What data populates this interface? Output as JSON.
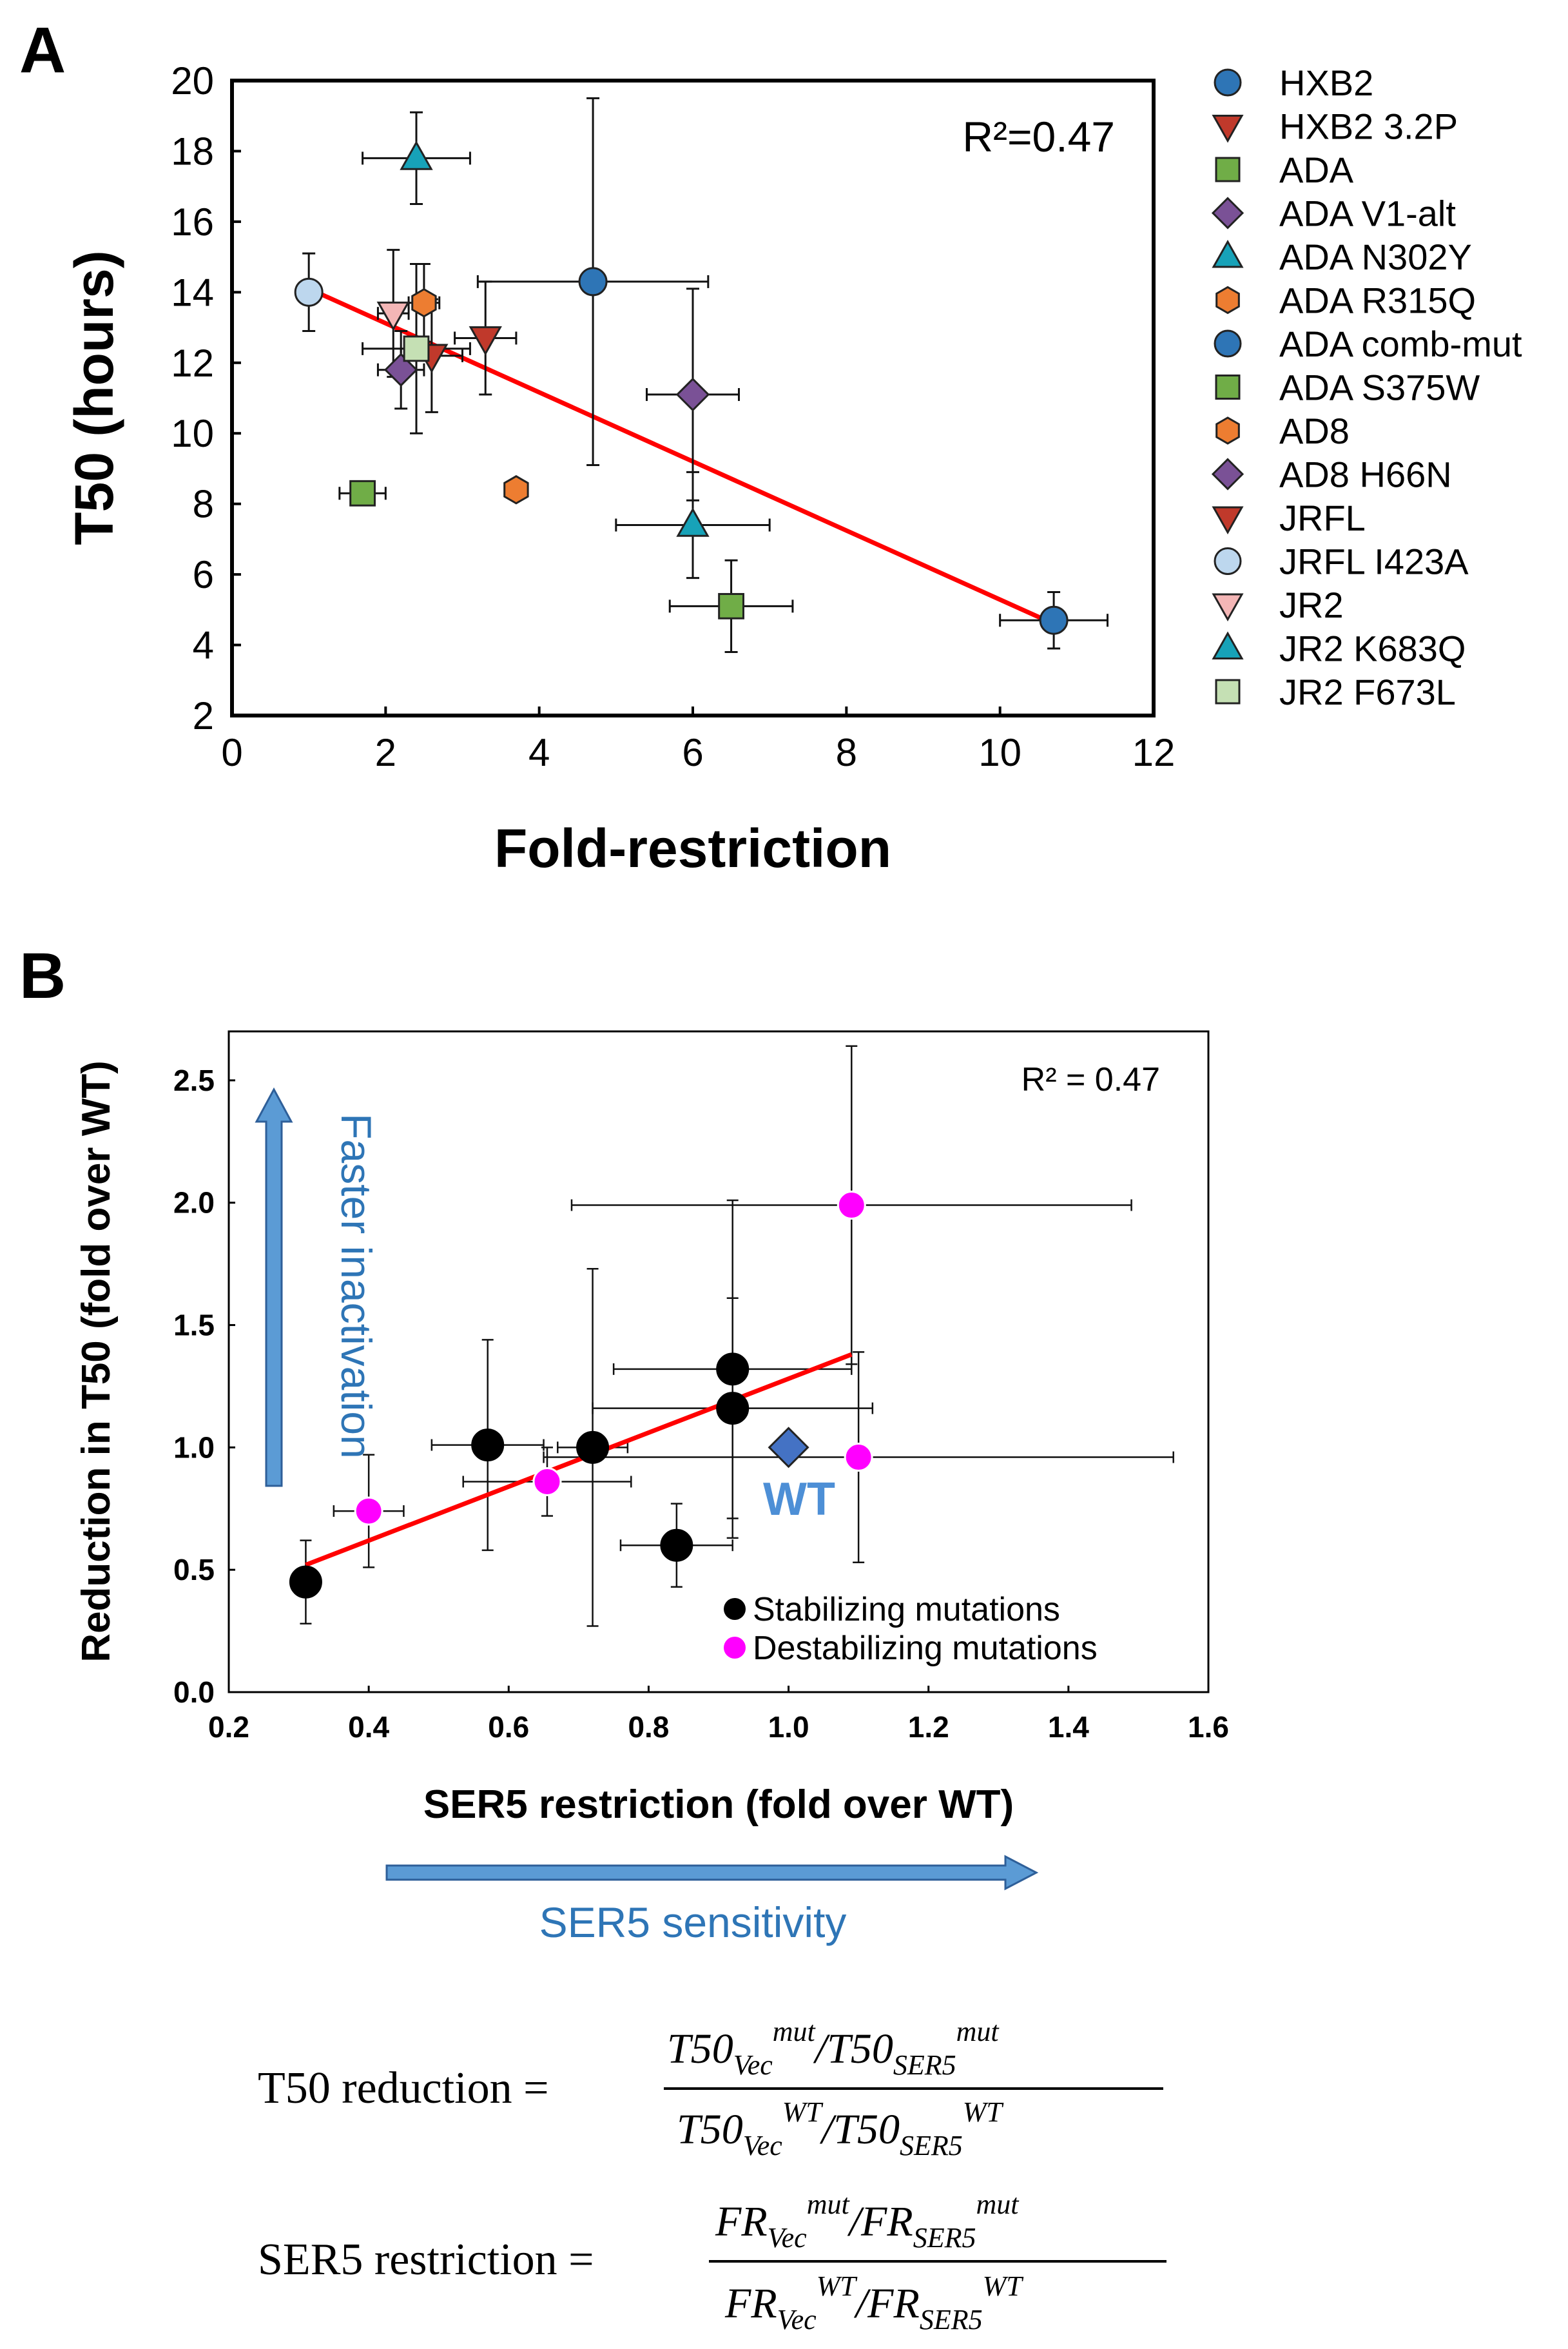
{
  "figure": {
    "panel_a_label": "A",
    "panel_b_label": "B"
  },
  "chart_data": [
    {
      "type": "scatter",
      "panel": "A",
      "xlabel": "Fold-restriction",
      "ylabel": "T50 (hours)",
      "xlim": [
        0,
        12
      ],
      "ylim": [
        2,
        20
      ],
      "xticks": [
        0,
        2,
        4,
        6,
        8,
        10,
        12
      ],
      "yticks": [
        2,
        4,
        6,
        8,
        10,
        12,
        14,
        16,
        18,
        20
      ],
      "annotation": "R²=0.47",
      "fit_line": {
        "x": [
          1.0,
          10.7
        ],
        "y": [
          14.1,
          4.6
        ],
        "color": "#ff0000"
      },
      "series": [
        {
          "name": "HXB2",
          "marker": "circle",
          "color": "#2e75b6",
          "x": 10.7,
          "y": 4.7,
          "xerr": 0.7,
          "yerr": 0.8
        },
        {
          "name": "HXB2 3.2P",
          "marker": "triangle-down",
          "color": "#c0392b",
          "x": 3.3,
          "y": 12.7,
          "xerr": 0.4,
          "yerr": 1.6
        },
        {
          "name": "ADA",
          "marker": "square",
          "color": "#70ad47",
          "x": 6.5,
          "y": 5.1,
          "xerr": 0.8,
          "yerr": 1.3
        },
        {
          "name": "ADA V1-alt",
          "marker": "diamond",
          "color": "#7a5196",
          "x": 6.0,
          "y": 11.1,
          "xerr": 0.6,
          "yerr": 3.0
        },
        {
          "name": "ADA N302Y",
          "marker": "triangle-up",
          "color": "#17a2b8",
          "x": 6.0,
          "y": 7.4,
          "xerr": 1.0,
          "yerr": 1.5
        },
        {
          "name": "ADA R315Q",
          "marker": "hexagon",
          "color": "#ed7d31",
          "x": 3.7,
          "y": 8.4,
          "xerr": 0,
          "yerr": 0
        },
        {
          "name": "ADA comb-mut",
          "marker": "circle",
          "color": "#2e75b6",
          "x": 4.7,
          "y": 14.3,
          "xerr": 1.5,
          "yerr": 5.2
        },
        {
          "name": "ADA S375W",
          "marker": "square",
          "color": "#70ad47",
          "x": 1.7,
          "y": 8.3,
          "xerr": 0.3,
          "yerr": 0
        },
        {
          "name": "AD8",
          "marker": "hexagon",
          "color": "#ed7d31",
          "x": 2.5,
          "y": 13.7,
          "xerr": 0.2,
          "yerr": 1.1
        },
        {
          "name": "AD8 H66N",
          "marker": "diamond",
          "color": "#7a5196",
          "x": 2.2,
          "y": 11.8,
          "xerr": 0.3,
          "yerr": 1.1
        },
        {
          "name": "JRFL",
          "marker": "triangle-down",
          "color": "#c0392b",
          "x": 2.6,
          "y": 12.2,
          "xerr": 0.4,
          "yerr": 1.6
        },
        {
          "name": "JRFL I423A",
          "marker": "circle",
          "color": "#bdd7ee",
          "x": 1.0,
          "y": 14.0,
          "xerr": 0,
          "yerr": 1.1
        },
        {
          "name": "JR2",
          "marker": "triangle-down",
          "color": "#f4b6b6",
          "x": 2.1,
          "y": 13.4,
          "xerr": 0.2,
          "yerr": 1.8
        },
        {
          "name": "JR2 K683Q",
          "marker": "triangle-up",
          "color": "#17a2b8",
          "x": 2.4,
          "y": 17.8,
          "xerr": 0.7,
          "yerr": 1.3
        },
        {
          "name": "JR2 F673L",
          "marker": "square",
          "color": "#c5e0b4",
          "x": 2.4,
          "y": 12.4,
          "xerr": 0.7,
          "yerr": 2.4
        }
      ]
    },
    {
      "type": "scatter",
      "panel": "B",
      "xlabel": "SER5 restriction (fold over WT)",
      "ylabel": "Reduction in T50 (fold over WT)",
      "xlim": [
        0.2,
        1.6
      ],
      "ylim": [
        0,
        2.7
      ],
      "xticks": [
        "0.2",
        "0.4",
        "0.6",
        "0.8",
        "1.0",
        "1.2",
        "1.4",
        "1.6"
      ],
      "yticks": [
        "0.0",
        "0.5",
        "1.0",
        "1.5",
        "2.0",
        "2.5"
      ],
      "annotation": "R² = 0.47",
      "fit_line": {
        "x": [
          0.31,
          1.09
        ],
        "y": [
          0.52,
          1.38
        ],
        "color": "#ff0000"
      },
      "wt_label": "WT",
      "wt_point": {
        "x": 1.0,
        "y": 1.0,
        "color": "#4472c4"
      },
      "legend": [
        {
          "label": "Stabilizing mutations",
          "color": "#000000"
        },
        {
          "label": "Destabilizing mutations",
          "color": "#ff00ff"
        }
      ],
      "series": [
        {
          "name": "Stabilizing mutations",
          "color": "#000000",
          "points": [
            {
              "x": 0.31,
              "y": 0.45,
              "xerr": 0.02,
              "yerr": 0.17
            },
            {
              "x": 0.57,
              "y": 1.01,
              "xerr": 0.08,
              "yerr": 0.43
            },
            {
              "x": 0.72,
              "y": 1.0,
              "xerr": 0.05,
              "yerr": 0.73
            },
            {
              "x": 0.84,
              "y": 0.6,
              "xerr": 0.08,
              "yerr": 0.17
            },
            {
              "x": 0.92,
              "y": 1.32,
              "xerr": 0.17,
              "yerr": 0.69
            },
            {
              "x": 0.92,
              "y": 1.16,
              "xerr": 0.2,
              "yerr": 0.45
            }
          ]
        },
        {
          "name": "Destabilizing mutations",
          "color": "#ff00ff",
          "points": [
            {
              "x": 0.4,
              "y": 0.74,
              "xerr": 0.05,
              "yerr": 0.23
            },
            {
              "x": 0.655,
              "y": 0.86,
              "xerr": 0.12,
              "yerr": 0.14
            },
            {
              "x": 1.09,
              "y": 1.99,
              "xerr": 0.4,
              "yerr": 0.65
            },
            {
              "x": 1.1,
              "y": 0.96,
              "xerr": 0.45,
              "yerr": 0.43
            }
          ]
        }
      ],
      "arrow_up_label": "Faster inactivation",
      "arrow_right_label": "SER5 sensitivity"
    }
  ],
  "equations": {
    "t50_lhs": "T50 reduction =",
    "ser5_lhs": "SER5 restriction =",
    "t50_base": "T50",
    "fr_base": "FR",
    "sub_vec": "Vec",
    "sub_ser5": "SER5",
    "sup_mut": "mut",
    "sup_wt": "WT",
    "slash": "/"
  }
}
